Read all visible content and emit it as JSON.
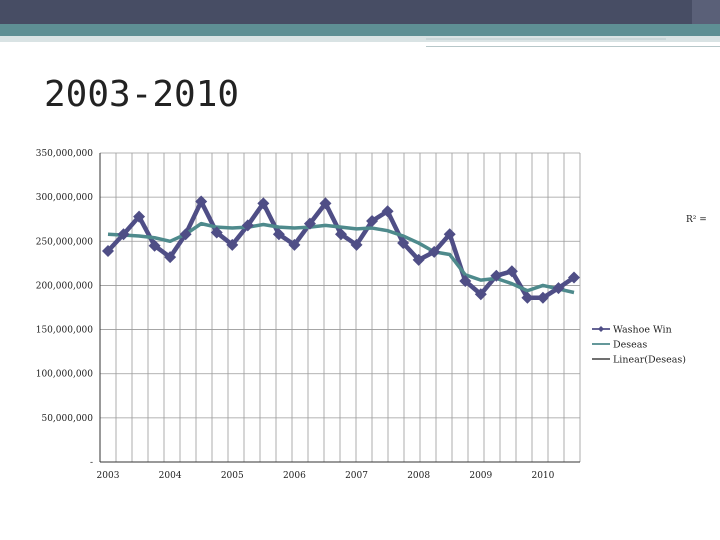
{
  "slide": {
    "title": "2003-2010"
  },
  "chart_data": {
    "type": "line",
    "title": "",
    "xlabel": "",
    "ylabel": "",
    "ylim": [
      0,
      350000000
    ],
    "yticks": [
      {
        "value": 0,
        "label": "-"
      },
      {
        "value": 50000000,
        "label": "50,000,000"
      },
      {
        "value": 100000000,
        "label": "100,000,000"
      },
      {
        "value": 150000000,
        "label": "150,000,000"
      },
      {
        "value": 200000000,
        "label": "200,000,000"
      },
      {
        "value": 250000000,
        "label": "250,000,000"
      },
      {
        "value": 300000000,
        "label": "300,000,000"
      },
      {
        "value": 350000000,
        "label": "350,000,000"
      }
    ],
    "xticks": [
      {
        "index": 0,
        "label": "2003"
      },
      {
        "index": 4,
        "label": "2004"
      },
      {
        "index": 8,
        "label": "2005"
      },
      {
        "index": 12,
        "label": "2006"
      },
      {
        "index": 16,
        "label": "2007"
      },
      {
        "index": 20,
        "label": "2008"
      },
      {
        "index": 24,
        "label": "2009"
      },
      {
        "index": 28,
        "label": "2010"
      }
    ],
    "n_points": 31,
    "series": [
      {
        "name": "Washoe Win",
        "color": "#4f4e86",
        "marker": "diamond",
        "values": [
          239000000,
          258000000,
          278000000,
          245000000,
          232000000,
          258000000,
          295000000,
          260000000,
          246000000,
          268000000,
          293000000,
          258000000,
          246000000,
          270000000,
          293000000,
          258000000,
          246000000,
          273000000,
          284000000,
          248000000,
          229000000,
          238000000,
          258000000,
          205000000,
          190000000,
          211000000,
          216000000,
          186000000,
          186000000,
          197000000,
          209000000
        ]
      },
      {
        "name": "Deseas",
        "color": "#4e8a8c",
        "marker": "none",
        "values": [
          258000000,
          257000000,
          256000000,
          254000000,
          250000000,
          258000000,
          270000000,
          266000000,
          265000000,
          266000000,
          269000000,
          266000000,
          265000000,
          266000000,
          268000000,
          266000000,
          264000000,
          265000000,
          262000000,
          256000000,
          248000000,
          238000000,
          235000000,
          212000000,
          206000000,
          208000000,
          202000000,
          194000000,
          200000000,
          196000000,
          192000000
        ]
      }
    ],
    "trendline": {
      "name": "Linear(Deseas)",
      "color": "#1a1a1a"
    },
    "annotation": "R² =",
    "legend_position": "right",
    "grid": true
  }
}
